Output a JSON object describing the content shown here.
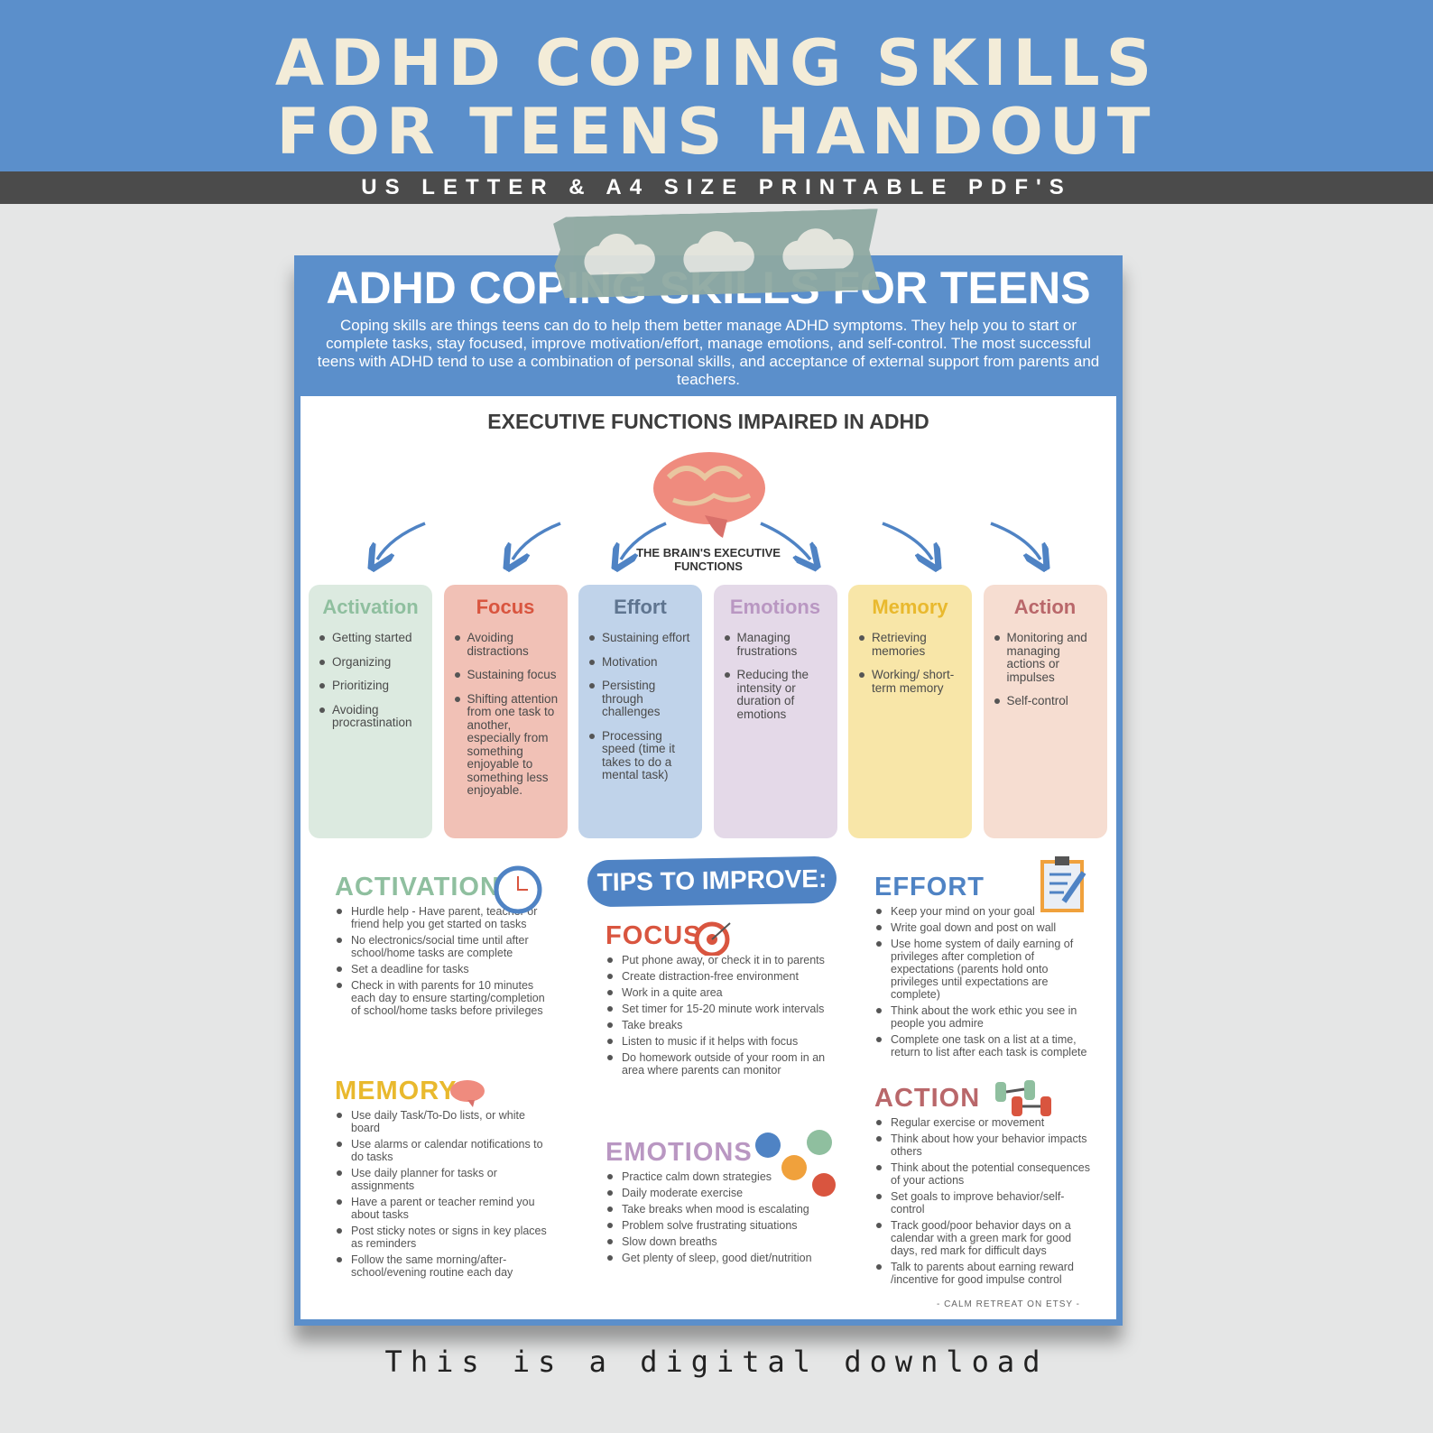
{
  "banner": {
    "title_line1": "ADHD COPING SKILLS",
    "title_line2": "FOR TEENS HANDOUT",
    "subtitle": "US LETTER & A4 SIZE PRINTABLE PDF'S"
  },
  "handout": {
    "title": "ADHD COPING SKILLS FOR TEENS",
    "description": "Coping skills are things teens can do to help them better manage ADHD symptoms. They help you to start or complete tasks, stay focused, improve motivation/effort, manage emotions, and self-control. The most successful teens with ADHD tend to use a combination of personal skills, and acceptance of external support from parents and teachers.",
    "section_title": "EXECUTIVE FUNCTIONS IMPAIRED IN ADHD",
    "brain_label": "THE BRAIN'S EXECUTIVE FUNCTIONS",
    "cards": [
      {
        "title": "Activation",
        "color": "#8fbf9f",
        "bg": "#dceae0",
        "items": [
          "Getting started",
          "Organizing",
          "Prioritizing",
          "Avoiding procrastination"
        ]
      },
      {
        "title": "Focus",
        "color": "#d9553f",
        "bg": "#f1c1b6",
        "items": [
          "Avoiding distractions",
          "Sustaining focus",
          "Shifting attention from one task to another, especially from something enjoyable to something less enjoyable."
        ]
      },
      {
        "title": "Effort",
        "color": "#5f7590",
        "bg": "#c0d3ea",
        "items": [
          "Sustaining effort",
          "Motivation",
          "Persisting through challenges",
          "Processing speed (time it takes to do a mental task)"
        ]
      },
      {
        "title": "Emotions",
        "color": "#b997c2",
        "bg": "#e4d9e8",
        "items": [
          "Managing frustrations",
          "Reducing the intensity or duration of emotions"
        ]
      },
      {
        "title": "Memory",
        "color": "#e9b92e",
        "bg": "#f8e6a8",
        "items": [
          "Retrieving memories",
          "Working/ short-term memory"
        ]
      },
      {
        "title": "Action",
        "color": "#b9676a",
        "bg": "#f6ddd1",
        "items": [
          "Monitoring and managing actions or impulses",
          "Self-control"
        ]
      }
    ],
    "tips_badge": "TIPS TO IMPROVE:",
    "tips": {
      "activation": {
        "title": "ACTIVATION",
        "color": "#8fbf9f",
        "items": [
          "Hurdle help - Have parent,  teacher or friend help you get started on tasks",
          "No electronics/social time until after school/home tasks are complete",
          "Set a deadline for tasks",
          "Check in with parents for 10 minutes each day to ensure starting/completion of school/home tasks before privileges"
        ]
      },
      "memory": {
        "title": "MEMORY",
        "color": "#e9b92e",
        "items": [
          "Use daily Task/To-Do lists, or white board",
          "Use alarms or calendar notifications to do tasks",
          "Use daily planner for tasks or assignments",
          "Have a parent or teacher remind you about tasks",
          "Post sticky notes or signs in key places as reminders",
          "Follow the same morning/after-school/evening routine each day"
        ]
      },
      "focus": {
        "title": "FOCUS",
        "color": "#d9553f",
        "items": [
          "Put phone away, or check it in to parents",
          "Create distraction-free environment",
          "Work in a quite area",
          "Set timer for 15-20 minute work intervals",
          "Take breaks",
          "Listen to music if it helps with focus",
          "Do homework outside of your room in an area where parents can monitor"
        ]
      },
      "emotions": {
        "title": "EMOTIONS",
        "color": "#b997c2",
        "items": [
          "Practice calm down strategies",
          "Daily moderate exercise",
          "Take breaks when mood is escalating",
          "Problem solve frustrating situations",
          "Slow down breaths",
          "Get plenty of sleep, good diet/nutrition"
        ]
      },
      "effort": {
        "title": "EFFORT",
        "color": "#4f83c4",
        "items": [
          "Keep your mind on your goal",
          "Write goal down and post on wall",
          "Use home system of daily earning of privileges after completion of expectations (parents hold onto privileges until expectations are complete)",
          "Think about the work ethic you see in people you admire",
          "Complete one task on a list at a time, return to list after each task is complete"
        ]
      },
      "action": {
        "title": "ACTION",
        "color": "#b9676a",
        "items": [
          "Regular exercise or movement",
          "Think about how your behavior impacts others",
          "Think about the potential consequences of your actions",
          "Set goals to improve behavior/self-control",
          "Track good/poor behavior days  on a calendar with a green mark for good days, red mark for difficult days",
          "Talk to parents about earning reward /incentive for good impulse control"
        ]
      }
    },
    "credit": "- CALM RETREAT ON ETSY -"
  },
  "footer": "This is a digital download"
}
